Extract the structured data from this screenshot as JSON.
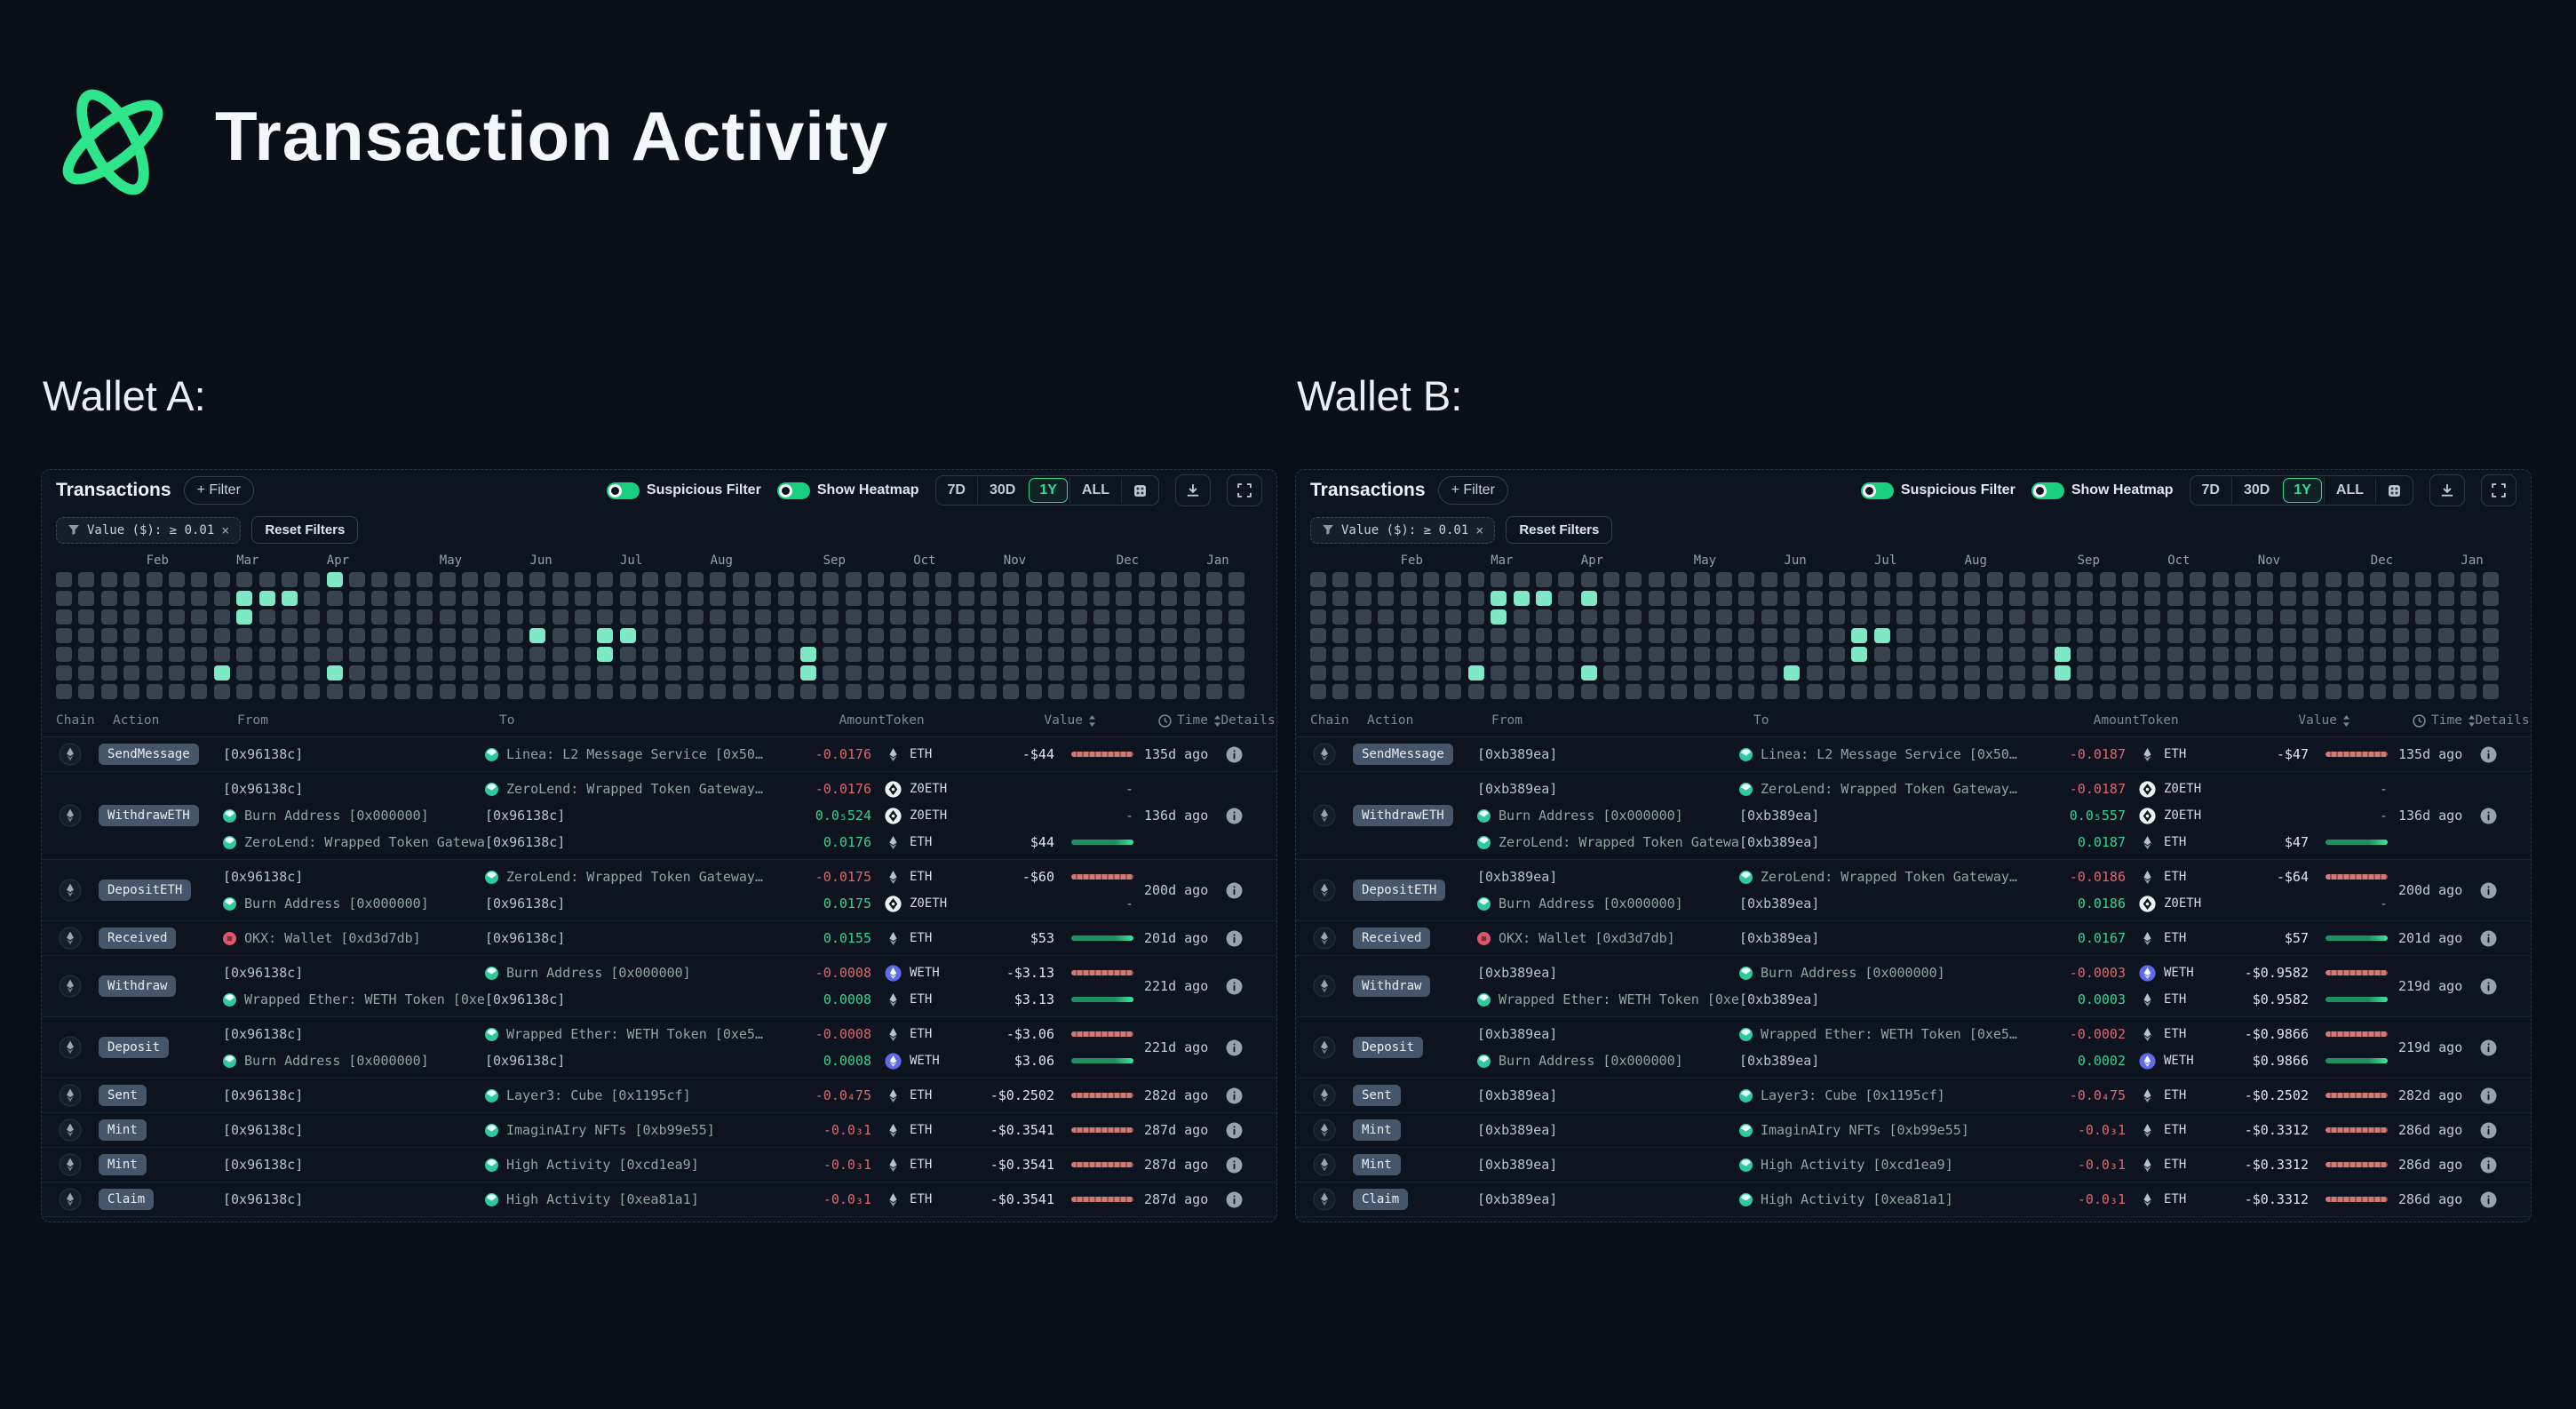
{
  "page": {
    "title": "Transaction Activity"
  },
  "colors": {
    "page_bg": "#0a0f17",
    "panel_bg": "#0d141f",
    "accent_green": "#2ee58c",
    "heatmap_cell": "#39434e",
    "heatmap_active": "#7fe9c6",
    "amount_negative": "#e0666d",
    "amount_positive": "#35d392",
    "bar_red": "#cf7a77",
    "bar_green": "#3fe6a0",
    "badge_bg": "#45566b",
    "toggle_on": "#17cf7e",
    "selected_range": "#2be08d"
  },
  "panel": {
    "title": "Transactions",
    "filter_button_label": "+ Filter",
    "toggles": [
      {
        "label": "Suspicious Filter",
        "on": true
      },
      {
        "label": "Show Heatmap",
        "on": true
      }
    ],
    "ranges": [
      "7D",
      "30D",
      "1Y",
      "ALL"
    ],
    "selected_range": "1Y",
    "chip_label": "Value ($): ≥ 0.01",
    "reset_label": "Reset Filters",
    "columns": [
      "Chain",
      "Action",
      "From",
      "To",
      "Amount",
      "Token",
      "Value",
      "Time",
      "Details"
    ],
    "heatmap": {
      "rows": 7,
      "cols": 53,
      "months": [
        {
          "m": "Feb",
          "c": 4
        },
        {
          "m": "Mar",
          "c": 8
        },
        {
          "m": "Apr",
          "c": 12
        },
        {
          "m": "May",
          "c": 17
        },
        {
          "m": "Jun",
          "c": 21
        },
        {
          "m": "Jul",
          "c": 25
        },
        {
          "m": "Aug",
          "c": 29
        },
        {
          "m": "Sep",
          "c": 34
        },
        {
          "m": "Oct",
          "c": 38
        },
        {
          "m": "Nov",
          "c": 42
        },
        {
          "m": "Dec",
          "c": 47
        },
        {
          "m": "Jan",
          "c": 51
        }
      ]
    }
  },
  "wallets": [
    {
      "label": "Wallet A:",
      "address": "[0x96138c]",
      "heatmap_active": [
        [
          12,
          0
        ],
        [
          8,
          1
        ],
        [
          9,
          1
        ],
        [
          10,
          1
        ],
        [
          8,
          2
        ],
        [
          21,
          3
        ],
        [
          24,
          3
        ],
        [
          25,
          3
        ],
        [
          24,
          4
        ],
        [
          33,
          4
        ],
        [
          7,
          5
        ],
        [
          12,
          5
        ],
        [
          33,
          5
        ]
      ],
      "rows": [
        {
          "action": "SendMessage",
          "time": "135d ago",
          "lines": [
            {
              "from": "[0x96138c]",
              "from_icon": "none",
              "to": "Linea: L2 Message Service [0x50…",
              "to_icon": "contract",
              "amount": "-0.0176",
              "dir": "neg",
              "token": "ETH",
              "value": "-$44",
              "bar": "red"
            }
          ]
        },
        {
          "action": "WithdrawETH",
          "time": "136d ago",
          "lines": [
            {
              "from": "[0x96138c]",
              "from_icon": "none",
              "to": "ZeroLend: Wrapped Token Gateway…",
              "to_icon": "contract",
              "amount": "-0.0176",
              "dir": "neg",
              "token": "Z0ETH",
              "value": "-",
              "bar": "none"
            },
            {
              "from": "Burn Address [0x000000]",
              "from_icon": "contract",
              "to": "[0x96138c]",
              "to_icon": "none",
              "amount": "0.0₅524",
              "dir": "pos",
              "token": "Z0ETH",
              "value": "-",
              "bar": "none"
            },
            {
              "from": "ZeroLend: Wrapped Token Gateway…",
              "from_icon": "contract",
              "to": "[0x96138c]",
              "to_icon": "none",
              "amount": "0.0176",
              "dir": "pos",
              "token": "ETH",
              "value": "$44",
              "bar": "green"
            }
          ]
        },
        {
          "action": "DepositETH",
          "time": "200d ago",
          "lines": [
            {
              "from": "[0x96138c]",
              "from_icon": "none",
              "to": "ZeroLend: Wrapped Token Gateway…",
              "to_icon": "contract",
              "amount": "-0.0175",
              "dir": "neg",
              "token": "ETH",
              "value": "-$60",
              "bar": "red"
            },
            {
              "from": "Burn Address [0x000000]",
              "from_icon": "contract",
              "to": "[0x96138c]",
              "to_icon": "none",
              "amount": "0.0175",
              "dir": "pos",
              "token": "Z0ETH",
              "value": "-",
              "bar": "none"
            }
          ]
        },
        {
          "action": "Received",
          "time": "201d ago",
          "lines": [
            {
              "from": "OKX: Wallet [0xd3d7db]",
              "from_icon": "okx",
              "to": "[0x96138c]",
              "to_icon": "none",
              "amount": "0.0155",
              "dir": "pos",
              "token": "ETH",
              "value": "$53",
              "bar": "green"
            }
          ]
        },
        {
          "action": "Withdraw",
          "time": "221d ago",
          "lines": [
            {
              "from": "[0x96138c]",
              "from_icon": "none",
              "to": "Burn Address [0x000000]",
              "to_icon": "contract",
              "amount": "-0.0008",
              "dir": "neg",
              "token": "WETH",
              "value": "-$3.13",
              "bar": "red"
            },
            {
              "from": "Wrapped Ether: WETH Token [0xe5…",
              "from_icon": "contract",
              "to": "[0x96138c]",
              "to_icon": "none",
              "amount": "0.0008",
              "dir": "pos",
              "token": "ETH",
              "value": "$3.13",
              "bar": "green"
            }
          ]
        },
        {
          "action": "Deposit",
          "time": "221d ago",
          "lines": [
            {
              "from": "[0x96138c]",
              "from_icon": "none",
              "to": "Wrapped Ether: WETH Token [0xe5…",
              "to_icon": "contract",
              "amount": "-0.0008",
              "dir": "neg",
              "token": "ETH",
              "value": "-$3.06",
              "bar": "red"
            },
            {
              "from": "Burn Address [0x000000]",
              "from_icon": "contract",
              "to": "[0x96138c]",
              "to_icon": "none",
              "amount": "0.0008",
              "dir": "pos",
              "token": "WETH",
              "value": "$3.06",
              "bar": "green"
            }
          ]
        },
        {
          "action": "Sent",
          "time": "282d ago",
          "lines": [
            {
              "from": "[0x96138c]",
              "from_icon": "none",
              "to": "Layer3: Cube [0x1195cf]",
              "to_icon": "contract",
              "amount": "-0.0₄75",
              "dir": "neg",
              "token": "ETH",
              "value": "-$0.2502",
              "bar": "red"
            }
          ]
        },
        {
          "action": "Mint",
          "time": "287d ago",
          "lines": [
            {
              "from": "[0x96138c]",
              "from_icon": "none",
              "to": "ImaginAIry NFTs [0xb99e55]",
              "to_icon": "contract",
              "amount": "-0.0₃1",
              "dir": "neg",
              "token": "ETH",
              "value": "-$0.3541",
              "bar": "red"
            }
          ]
        },
        {
          "action": "Mint",
          "time": "287d ago",
          "lines": [
            {
              "from": "[0x96138c]",
              "from_icon": "none",
              "to": "High Activity [0xcd1ea9]",
              "to_icon": "contract",
              "amount": "-0.0₃1",
              "dir": "neg",
              "token": "ETH",
              "value": "-$0.3541",
              "bar": "red"
            }
          ]
        },
        {
          "action": "Claim",
          "time": "287d ago",
          "lines": [
            {
              "from": "[0x96138c]",
              "from_icon": "none",
              "to": "High Activity [0xea81a1]",
              "to_icon": "contract",
              "amount": "-0.0₃1",
              "dir": "neg",
              "token": "ETH",
              "value": "-$0.3541",
              "bar": "red"
            }
          ]
        }
      ]
    },
    {
      "label": "Wallet B:",
      "address": "[0xb389ea]",
      "heatmap_active": [
        [
          8,
          1
        ],
        [
          9,
          1
        ],
        [
          10,
          1
        ],
        [
          12,
          1
        ],
        [
          8,
          2
        ],
        [
          24,
          3
        ],
        [
          25,
          3
        ],
        [
          24,
          4
        ],
        [
          33,
          4
        ],
        [
          7,
          5
        ],
        [
          12,
          5
        ],
        [
          21,
          5
        ],
        [
          33,
          5
        ]
      ],
      "rows": [
        {
          "action": "SendMessage",
          "time": "135d ago",
          "lines": [
            {
              "from": "[0xb389ea]",
              "from_icon": "none",
              "to": "Linea: L2 Message Service [0x50…",
              "to_icon": "contract",
              "amount": "-0.0187",
              "dir": "neg",
              "token": "ETH",
              "value": "-$47",
              "bar": "red"
            }
          ]
        },
        {
          "action": "WithdrawETH",
          "time": "136d ago",
          "lines": [
            {
              "from": "[0xb389ea]",
              "from_icon": "none",
              "to": "ZeroLend: Wrapped Token Gateway…",
              "to_icon": "contract",
              "amount": "-0.0187",
              "dir": "neg",
              "token": "Z0ETH",
              "value": "-",
              "bar": "none"
            },
            {
              "from": "Burn Address [0x000000]",
              "from_icon": "contract",
              "to": "[0xb389ea]",
              "to_icon": "none",
              "amount": "0.0₅557",
              "dir": "pos",
              "token": "Z0ETH",
              "value": "-",
              "bar": "none"
            },
            {
              "from": "ZeroLend: Wrapped Token Gateway…",
              "from_icon": "contract",
              "to": "[0xb389ea]",
              "to_icon": "none",
              "amount": "0.0187",
              "dir": "pos",
              "token": "ETH",
              "value": "$47",
              "bar": "green"
            }
          ]
        },
        {
          "action": "DepositETH",
          "time": "200d ago",
          "lines": [
            {
              "from": "[0xb389ea]",
              "from_icon": "none",
              "to": "ZeroLend: Wrapped Token Gateway…",
              "to_icon": "contract",
              "amount": "-0.0186",
              "dir": "neg",
              "token": "ETH",
              "value": "-$64",
              "bar": "red"
            },
            {
              "from": "Burn Address [0x000000]",
              "from_icon": "contract",
              "to": "[0xb389ea]",
              "to_icon": "none",
              "amount": "0.0186",
              "dir": "pos",
              "token": "Z0ETH",
              "value": "-",
              "bar": "none"
            }
          ]
        },
        {
          "action": "Received",
          "time": "201d ago",
          "lines": [
            {
              "from": "OKX: Wallet [0xd3d7db]",
              "from_icon": "okx",
              "to": "[0xb389ea]",
              "to_icon": "none",
              "amount": "0.0167",
              "dir": "pos",
              "token": "ETH",
              "value": "$57",
              "bar": "green"
            }
          ]
        },
        {
          "action": "Withdraw",
          "time": "219d ago",
          "lines": [
            {
              "from": "[0xb389ea]",
              "from_icon": "none",
              "to": "Burn Address [0x000000]",
              "to_icon": "contract",
              "amount": "-0.0003",
              "dir": "neg",
              "token": "WETH",
              "value": "-$0.9582",
              "bar": "red"
            },
            {
              "from": "Wrapped Ether: WETH Token [0xe5…",
              "from_icon": "contract",
              "to": "[0xb389ea]",
              "to_icon": "none",
              "amount": "0.0003",
              "dir": "pos",
              "token": "ETH",
              "value": "$0.9582",
              "bar": "green"
            }
          ]
        },
        {
          "action": "Deposit",
          "time": "219d ago",
          "lines": [
            {
              "from": "[0xb389ea]",
              "from_icon": "none",
              "to": "Wrapped Ether: WETH Token [0xe5…",
              "to_icon": "contract",
              "amount": "-0.0002",
              "dir": "neg",
              "token": "ETH",
              "value": "-$0.9866",
              "bar": "red"
            },
            {
              "from": "Burn Address [0x000000]",
              "from_icon": "contract",
              "to": "[0xb389ea]",
              "to_icon": "none",
              "amount": "0.0002",
              "dir": "pos",
              "token": "WETH",
              "value": "$0.9866",
              "bar": "green"
            }
          ]
        },
        {
          "action": "Sent",
          "time": "282d ago",
          "lines": [
            {
              "from": "[0xb389ea]",
              "from_icon": "none",
              "to": "Layer3: Cube [0x1195cf]",
              "to_icon": "contract",
              "amount": "-0.0₄75",
              "dir": "neg",
              "token": "ETH",
              "value": "-$0.2502",
              "bar": "red"
            }
          ]
        },
        {
          "action": "Mint",
          "time": "286d ago",
          "lines": [
            {
              "from": "[0xb389ea]",
              "from_icon": "none",
              "to": "ImaginAIry NFTs [0xb99e55]",
              "to_icon": "contract",
              "amount": "-0.0₃1",
              "dir": "neg",
              "token": "ETH",
              "value": "-$0.3312",
              "bar": "red"
            }
          ]
        },
        {
          "action": "Mint",
          "time": "286d ago",
          "lines": [
            {
              "from": "[0xb389ea]",
              "from_icon": "none",
              "to": "High Activity [0xcd1ea9]",
              "to_icon": "contract",
              "amount": "-0.0₃1",
              "dir": "neg",
              "token": "ETH",
              "value": "-$0.3312",
              "bar": "red"
            }
          ]
        },
        {
          "action": "Claim",
          "time": "286d ago",
          "lines": [
            {
              "from": "[0xb389ea]",
              "from_icon": "none",
              "to": "High Activity [0xea81a1]",
              "to_icon": "contract",
              "amount": "-0.0₃1",
              "dir": "neg",
              "token": "ETH",
              "value": "-$0.3312",
              "bar": "red"
            }
          ]
        }
      ]
    }
  ]
}
